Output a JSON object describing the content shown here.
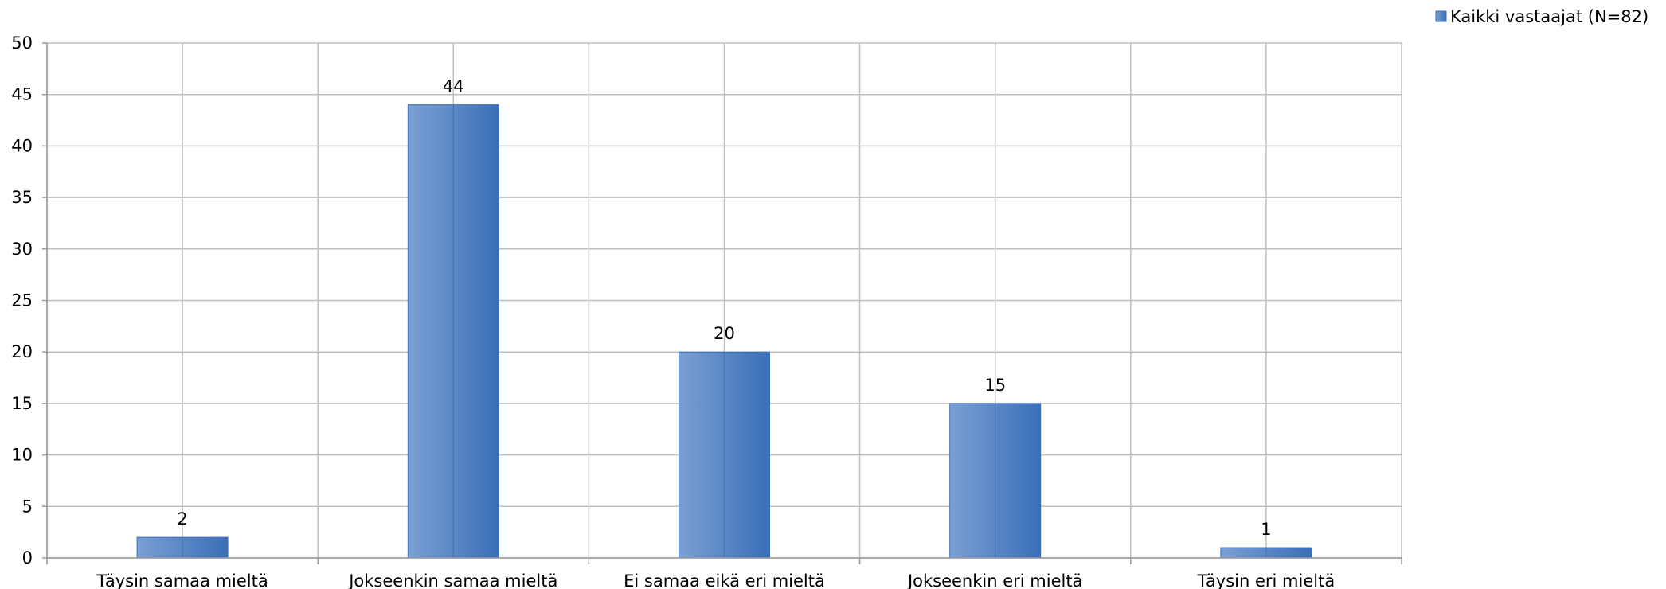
{
  "chart_data": {
    "type": "bar",
    "categories": [
      "Täysin samaa mieltä",
      "Jokseenkin samaa mieltä",
      "Ei samaa eikä eri mieltä",
      "Jokseenkin eri mieltä",
      "Täysin eri mieltä"
    ],
    "series": [
      {
        "name": "Kaikki vastaajat (N=82)",
        "values": [
          2,
          44,
          20,
          15,
          1
        ]
      }
    ],
    "data_labels": [
      "2",
      "44",
      "20",
      "15",
      "1"
    ],
    "ylim": [
      0,
      50
    ],
    "yticks": [
      0,
      5,
      10,
      15,
      20,
      25,
      30,
      35,
      40,
      45,
      50
    ],
    "title": "",
    "xlabel": "",
    "ylabel": "",
    "grid": true,
    "legend_position": "top-right",
    "colors": {
      "bar_light": "#7aa0d4",
      "bar_dark": "#3a6fb8",
      "grid": "#c0c0c0",
      "axis": "#999999"
    }
  }
}
